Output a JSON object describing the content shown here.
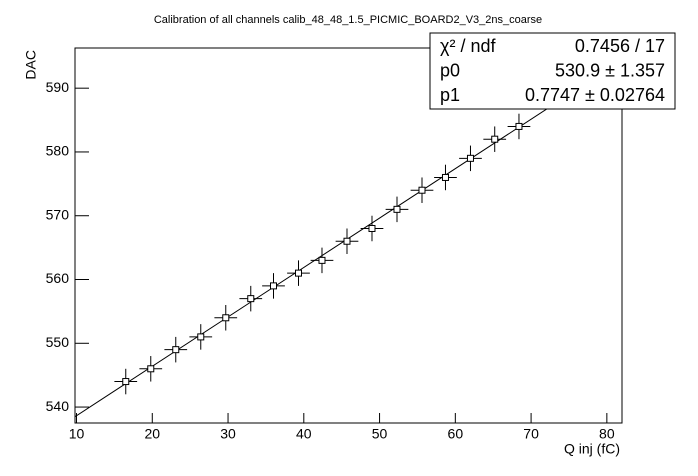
{
  "chart_data": {
    "type": "scatter",
    "title": "Calibration of all channels calib_48_48_1.5_PICMIC_BOARD2_V3_2ns_coarse",
    "x_label": "Q inj (fC)",
    "y_label": "DAC",
    "x": [
      16.5,
      19.8,
      23.1,
      26.4,
      29.7,
      33.0,
      36.0,
      39.3,
      42.4,
      45.7,
      49.0,
      52.3,
      55.6,
      58.7,
      62.0,
      65.2,
      68.4
    ],
    "values": [
      544,
      546,
      549,
      551,
      554,
      557,
      559,
      561,
      563,
      566,
      568,
      571,
      574,
      576,
      579,
      582,
      584
    ],
    "x_errors": [
      1.5,
      1.5,
      1.5,
      1.5,
      1.5,
      1.5,
      1.5,
      1.5,
      1.5,
      1.5,
      1.5,
      1.5,
      1.5,
      1.5,
      1.5,
      1.5,
      1.5
    ],
    "y_errors": [
      2,
      2,
      2,
      2,
      2,
      2,
      2,
      2,
      2,
      2,
      2,
      2,
      2,
      2,
      2,
      2,
      2
    ],
    "color": "#000000",
    "xlim": [
      9.8,
      82
    ],
    "xticks": [
      10,
      20,
      30,
      40,
      50,
      60,
      70,
      80
    ],
    "ylim": [
      537.5,
      596.3
    ],
    "yticks": [
      540,
      550,
      560,
      570,
      580,
      590
    ],
    "stats": [
      {
        "name": "χ² / ndf",
        "label": "0.7456 / 17"
      },
      {
        "name": "p0",
        "value": 530.9,
        "error": 1.357,
        "label": "530.9 ± 1.357"
      },
      {
        "name": "p1",
        "value": 0.7747,
        "error": 0.02764,
        "label": "0.7747 ± 0.02764"
      }
    ]
  }
}
